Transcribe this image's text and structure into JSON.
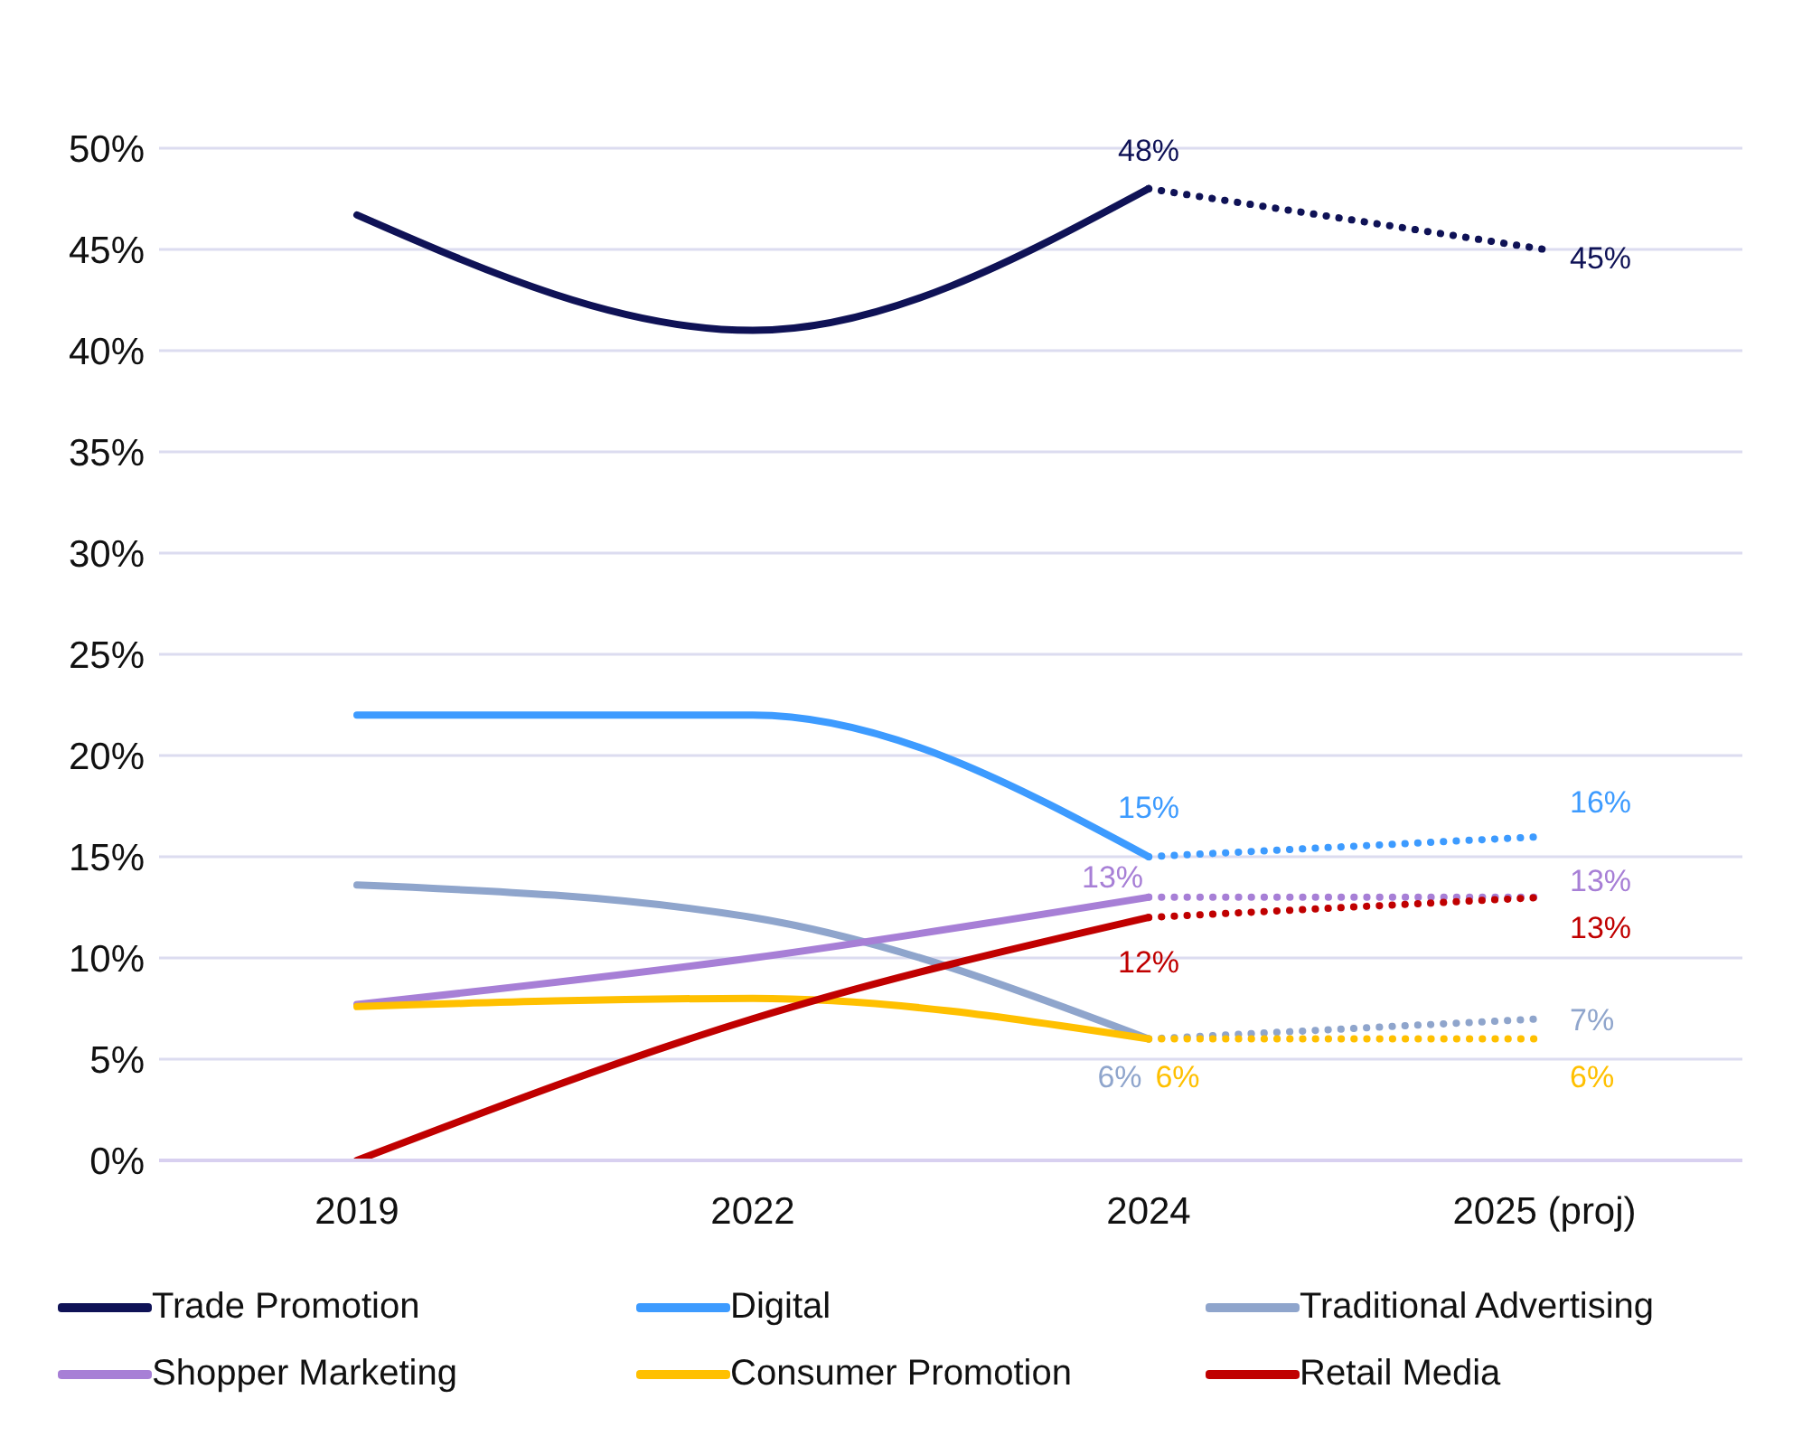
{
  "chart_data": {
    "type": "line",
    "categories": [
      "2019",
      "2022",
      "2024",
      "2025 (proj)"
    ],
    "series": [
      {
        "name": "Trade Promotion",
        "color": "#0f1256",
        "values": [
          46.7,
          41,
          48,
          45
        ],
        "value_labels": [
          null,
          null,
          "48%",
          "45%"
        ]
      },
      {
        "name": "Digital",
        "color": "#3d9bff",
        "values": [
          22,
          22,
          15,
          16
        ],
        "value_labels": [
          null,
          null,
          "15%",
          "16%"
        ]
      },
      {
        "name": "Traditional Advertising",
        "color": "#8fa5cc",
        "values": [
          13.6,
          12,
          6,
          7
        ],
        "value_labels": [
          null,
          null,
          "6%",
          "7%"
        ]
      },
      {
        "name": "Shopper Marketing",
        "color": "#a77fd6",
        "values": [
          7.7,
          10,
          13,
          13
        ],
        "value_labels": [
          null,
          null,
          "13%",
          "13%"
        ]
      },
      {
        "name": "Consumer Promotion",
        "color": "#ffc000",
        "values": [
          7.6,
          8,
          6,
          6
        ],
        "value_labels": [
          null,
          null,
          "6%",
          "6%"
        ]
      },
      {
        "name": "Retail Media",
        "color": "#c00000",
        "values": [
          0,
          7,
          12,
          13
        ],
        "value_labels": [
          null,
          null,
          "12%",
          "13%"
        ]
      }
    ],
    "ylim": [
      0,
      50
    ],
    "yticks": [
      {
        "value": 0,
        "label": "0%"
      },
      {
        "value": 5,
        "label": "5%"
      },
      {
        "value": 10,
        "label": "10%"
      },
      {
        "value": 15,
        "label": "15%"
      },
      {
        "value": 20,
        "label": "20%"
      },
      {
        "value": 25,
        "label": "25%"
      },
      {
        "value": 30,
        "label": "30%"
      },
      {
        "value": 35,
        "label": "35%"
      },
      {
        "value": 40,
        "label": "40%"
      },
      {
        "value": 45,
        "label": "45%"
      },
      {
        "value": 50,
        "label": "50%"
      }
    ],
    "grid": "y",
    "legend": "bottom",
    "marker": "none",
    "line_style": "solid"
  }
}
